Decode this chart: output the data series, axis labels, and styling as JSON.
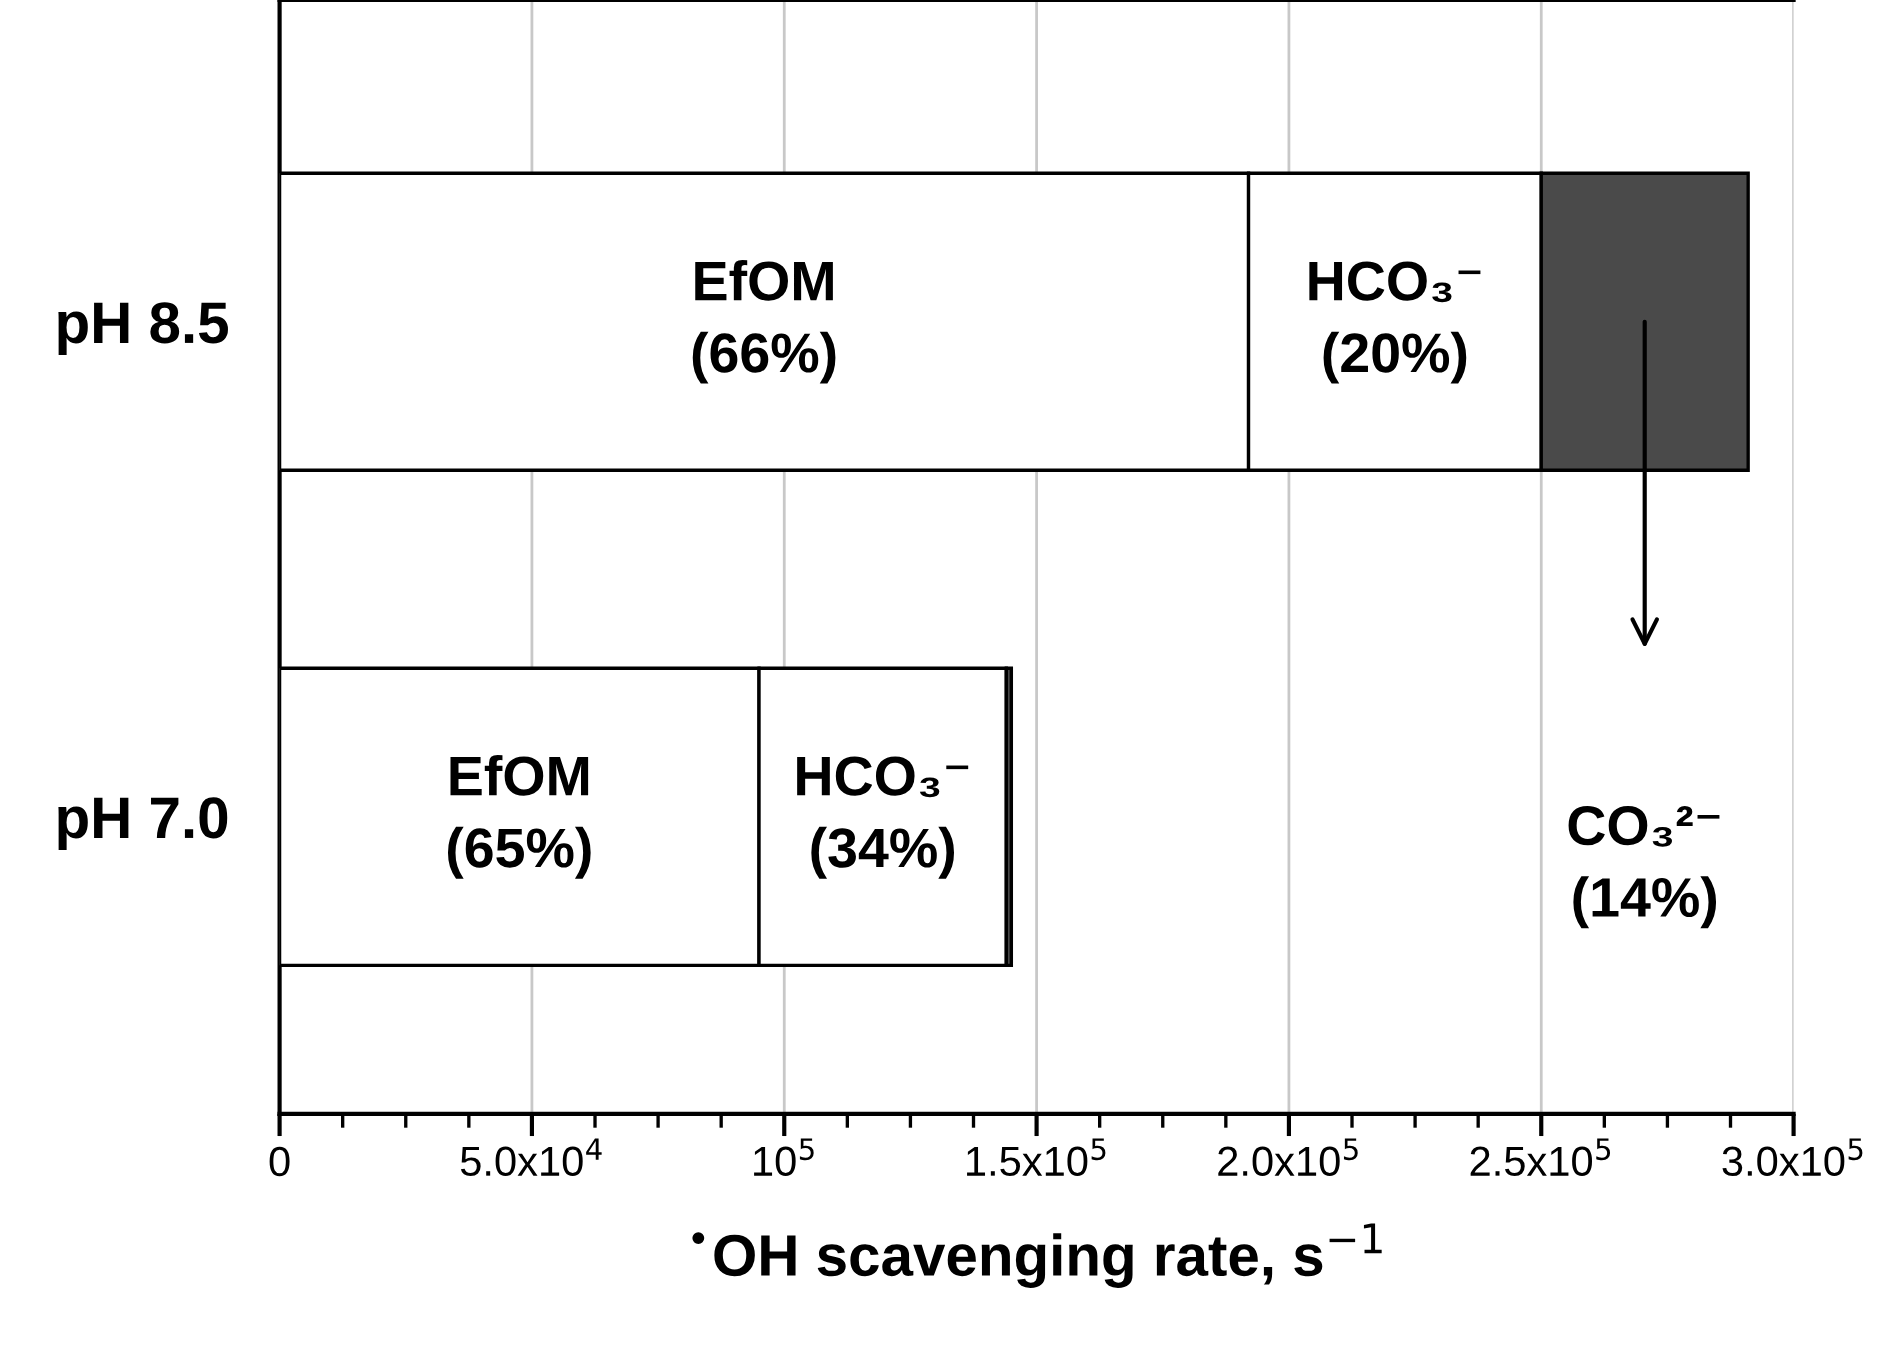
{
  "chart_data": {
    "type": "bar",
    "orientation": "horizontal",
    "stacked": true,
    "categories": [
      "pH 8.5",
      "pH 7.0"
    ],
    "series": [
      {
        "color": "#ffffff",
        "values": [
          192000,
          95000
        ]
      },
      {
        "color": "#ffffff",
        "values": [
          58000,
          49000
        ]
      },
      {
        "color": "#4a4a4a",
        "values": [
          41000,
          1000
        ]
      }
    ],
    "xlabel": "$^{•}$OH scavenging rate, s$^{−1}$",
    "xlim": [
      0,
      300000
    ],
    "xticks": [
      0,
      {
        "value": 12500,
        "label": null
      },
      {
        "value": 25000,
        "label": null
      },
      {
        "value": 37500,
        "label": null
      },
      {
        "value": 50000,
        "label": "5.0x10$^{4}$"
      },
      {
        "value": 62500,
        "label": null
      },
      {
        "value": 75000,
        "label": null
      },
      {
        "value": 87500,
        "label": null
      },
      {
        "value": 100000,
        "label": "10$^{5}$"
      },
      {
        "value": 112500,
        "label": null
      },
      {
        "value": 125000,
        "label": null
      },
      {
        "value": 137500,
        "label": null
      },
      {
        "value": 150000,
        "label": "1.5x10$^{5}$"
      },
      {
        "value": 162500,
        "label": null
      },
      {
        "value": 175000,
        "label": null
      },
      {
        "value": 187500,
        "label": null
      },
      {
        "value": 200000,
        "label": "2.0x10$^{5}$"
      },
      {
        "value": 212500,
        "label": null
      },
      {
        "value": 225000,
        "label": null
      },
      {
        "value": 237500,
        "label": null
      },
      {
        "value": 250000,
        "label": "2.5x10$^{5}$"
      },
      {
        "value": 262500,
        "label": null
      },
      {
        "value": 275000,
        "label": null
      },
      {
        "value": 287500,
        "label": null
      },
      {
        "value": 300000,
        "label": "3.0x10$^{5}$"
      }
    ],
    "grid": "x",
    "legend": false,
    "annotations": [
      "EfOM\n(66%)",
      "HCO₃⁻\n(20%)",
      "CO₃²⁻\n(14%)",
      "EfOM\n(65%)",
      "HCO₃⁻\n(34%)"
    ]
  }
}
